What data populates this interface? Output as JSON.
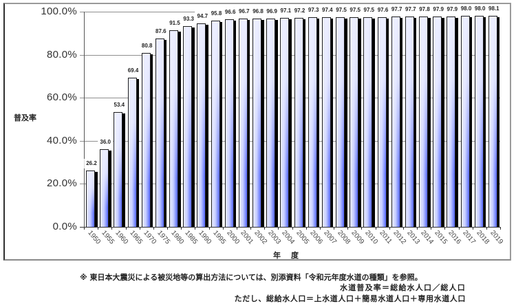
{
  "chart_data": {
    "type": "bar",
    "title": "",
    "xlabel": "年　度",
    "ylabel": "普及率",
    "categories": [
      "1950",
      "1955",
      "1960",
      "1965",
      "1970",
      "1975",
      "1980",
      "1985",
      "1990",
      "1995",
      "2000",
      "2001",
      "2002",
      "2003",
      "2004",
      "2005",
      "2006",
      "2007",
      "2008",
      "2009",
      "2010",
      "2011",
      "2012",
      "2013",
      "2014",
      "2015",
      "2016",
      "2017",
      "2018",
      "2019"
    ],
    "values": [
      26.2,
      36.0,
      53.4,
      69.4,
      80.8,
      87.6,
      91.5,
      93.3,
      94.7,
      95.8,
      96.6,
      96.7,
      96.8,
      96.9,
      97.1,
      97.2,
      97.3,
      97.4,
      97.5,
      97.5,
      97.5,
      97.6,
      97.7,
      97.7,
      97.8,
      97.9,
      97.9,
      98.0,
      98.0,
      98.1
    ],
    "ylim": [
      0,
      100
    ],
    "yticks": [
      "0.0%",
      "20.0%",
      "40.0%",
      "60.0%",
      "80.0%",
      "100.0%"
    ],
    "grid": true,
    "legend": null,
    "data_labels": true,
    "label_decimals": 1,
    "bar_color": "#5466ff",
    "bar_highlight_color": "#e6e9ff",
    "shadow_color": "#000000"
  },
  "notes": {
    "line1": "※ 東日本大震災による被災地等の算出方法については、別添資料「令和元年度水道の種類」を参照。",
    "line2": "水道普及率＝総給水人口／総人口",
    "line3": "ただし、総給水人口＝上水道人口＋簡易水道人口＋専用水道人口"
  }
}
